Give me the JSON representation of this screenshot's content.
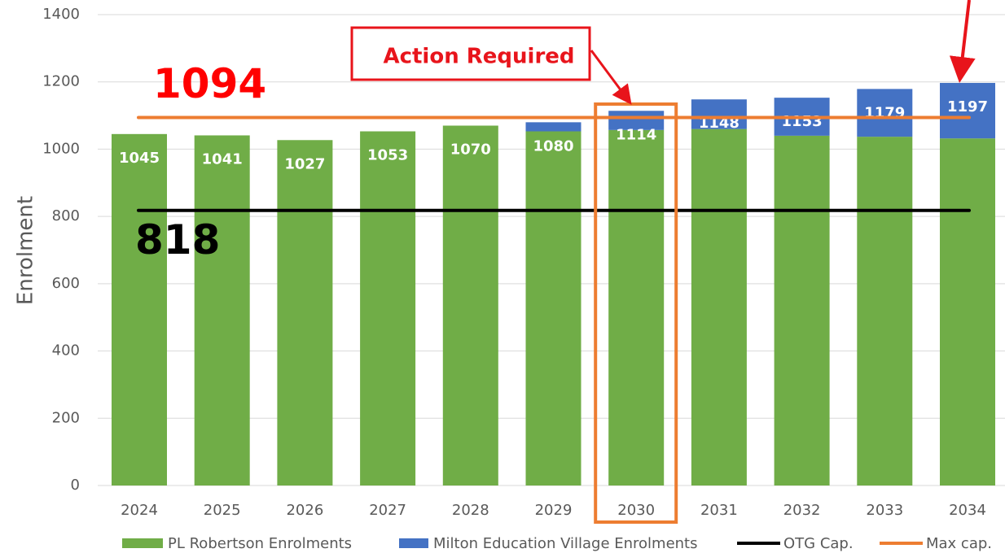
{
  "chart_data": {
    "type": "stacked_bar",
    "y_label": "Enrolment",
    "categories": [
      "2024",
      "2025",
      "2026",
      "2027",
      "2028",
      "2029",
      "2030",
      "2031",
      "2032",
      "2033",
      "2034"
    ],
    "series": [
      {
        "name": "PL Robertson Enrolments",
        "color": "#70ad47",
        "values": [
          1045,
          1041,
          1027,
          1053,
          1070,
          1053,
          1057,
          1060,
          1040,
          1037,
          1032
        ]
      },
      {
        "name": "Milton Education Village Enrolments",
        "color": "#4472c4",
        "values": [
          0,
          0,
          0,
          0,
          0,
          27,
          57,
          88,
          113,
          142,
          165
        ]
      }
    ],
    "totals": [
      1045,
      1041,
      1027,
      1053,
      1070,
      1080,
      1114,
      1148,
      1153,
      1179,
      1197
    ],
    "lines": [
      {
        "name": "OTG Cap.",
        "color": "#000000",
        "value": 818
      },
      {
        "name": "Max cap.",
        "color": "#ed7d31",
        "value": 1094
      }
    ],
    "annotation": "Action Required",
    "highlight_category": 6,
    "ylim": [
      0,
      1400
    ],
    "yticks": [
      0,
      200,
      400,
      600,
      800,
      1000,
      1200,
      1400
    ],
    "grid": true
  }
}
